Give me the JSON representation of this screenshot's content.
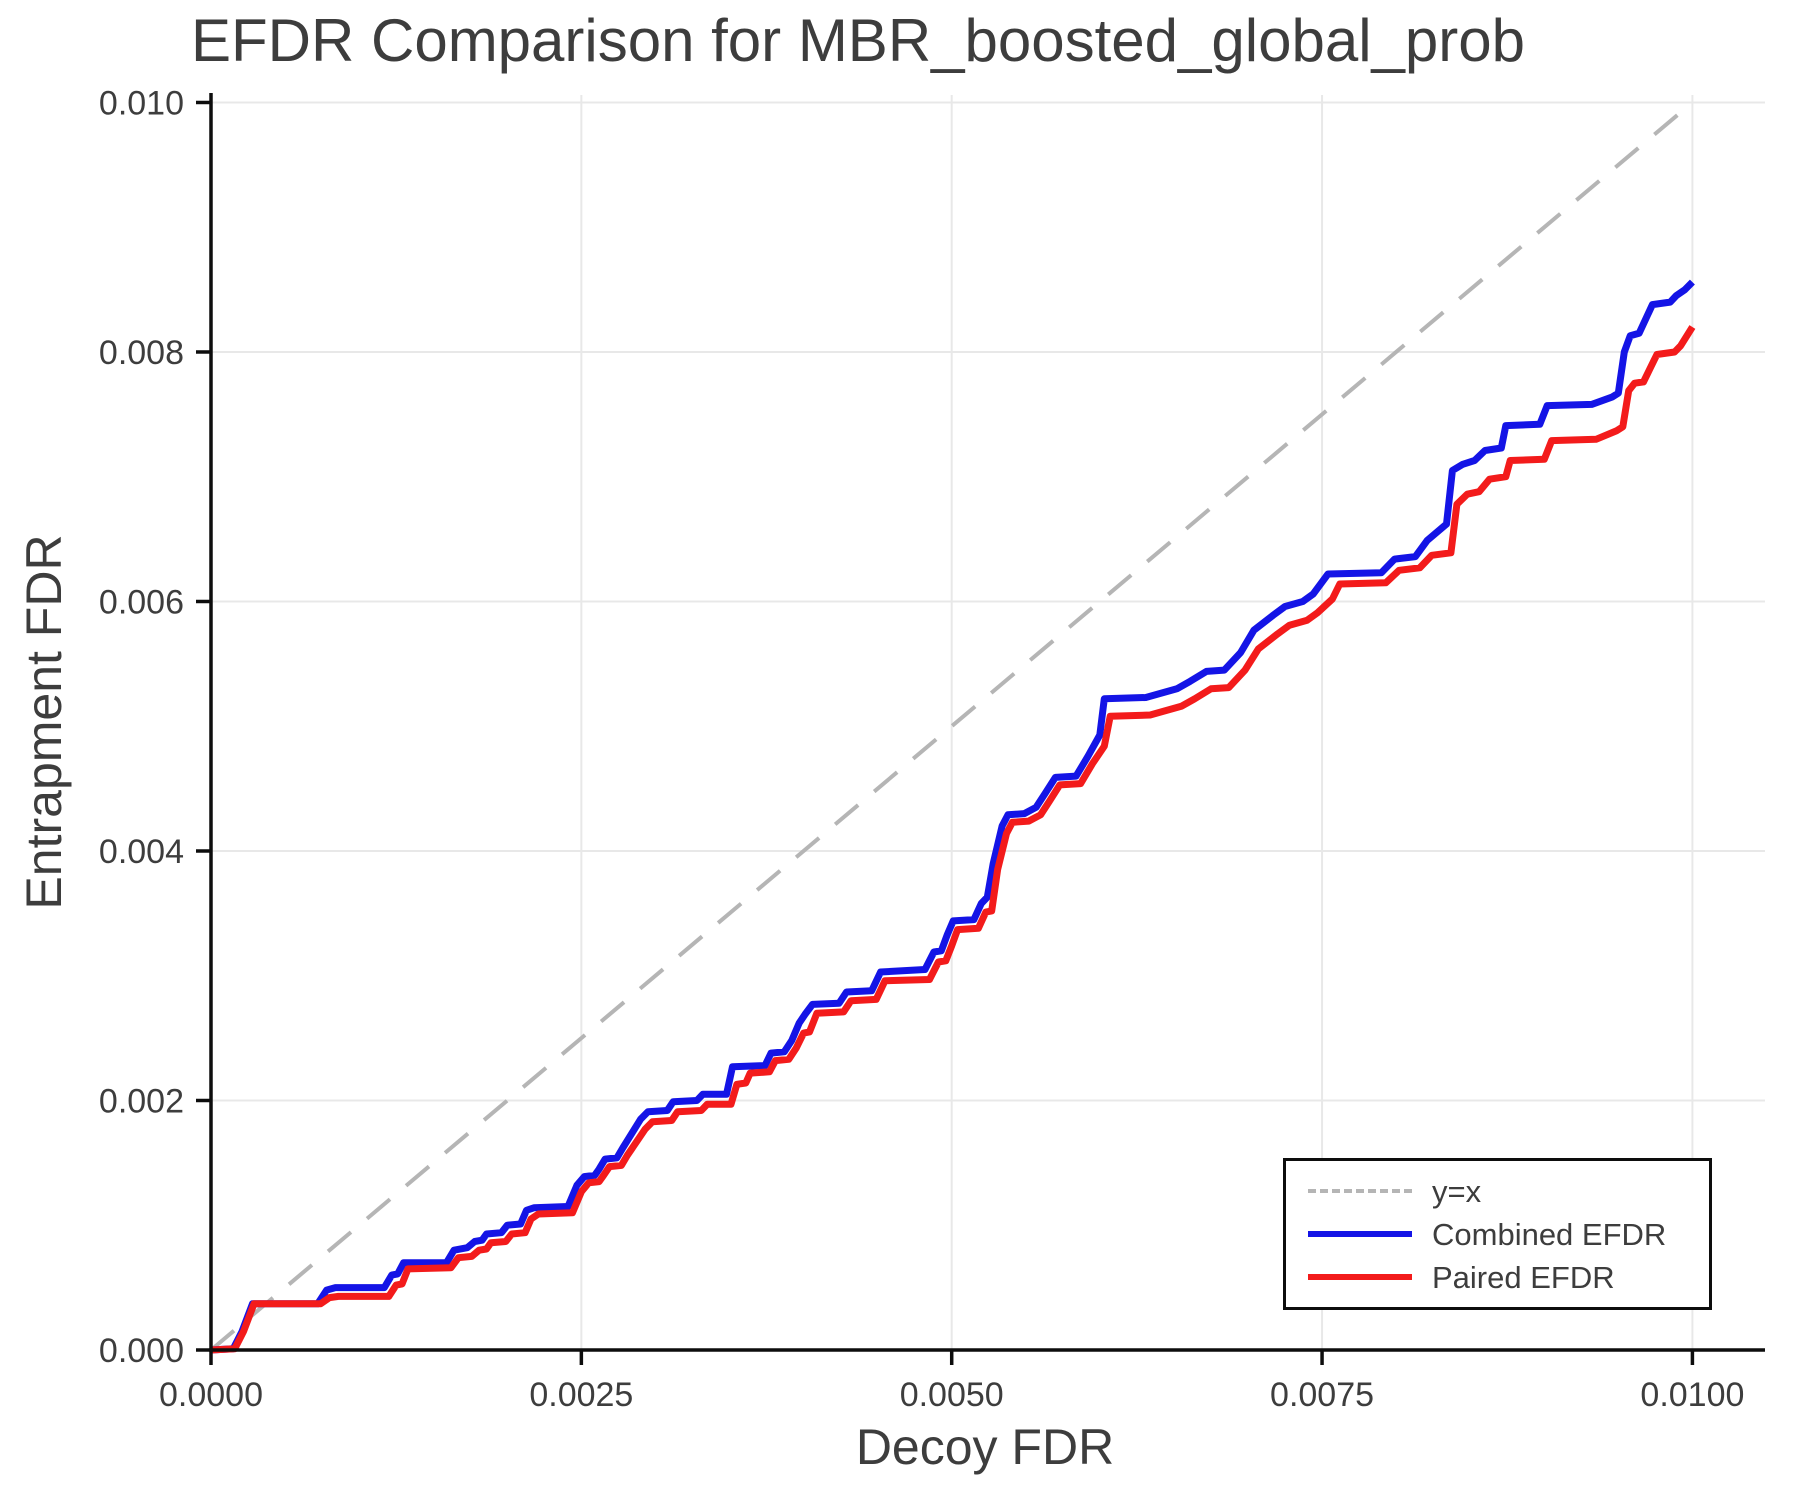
{
  "chart_data": {
    "type": "line",
    "title": "EFDR Comparison for MBR_boosted_global_prob",
    "xlabel": "Decoy FDR",
    "ylabel": "Entrapment FDR",
    "xlim": [
      0,
      0.01049
    ],
    "ylim": [
      0,
      0.01006
    ],
    "grid": true,
    "x_ticks": {
      "values": [
        0,
        0.0025,
        0.005,
        0.0075,
        0.01
      ],
      "labels": [
        "0.0000",
        "0.0025",
        "0.0050",
        "0.0075",
        "0.0100"
      ]
    },
    "y_ticks": {
      "values": [
        0,
        0.002,
        0.004,
        0.006,
        0.008,
        0.01
      ],
      "labels": [
        "0.000",
        "0.002",
        "0.004",
        "0.006",
        "0.008",
        "0.010"
      ]
    },
    "legend": {
      "position": "lower right",
      "entries": [
        "y=x",
        "Combined EFDR",
        "Paired EFDR"
      ]
    },
    "colors": {
      "identity_line": "#b5b5b5",
      "combined": "#1414e6",
      "paired": "#f31b1b",
      "grid": "#e8e8e8",
      "spine": "#0d0d0d",
      "text": "#3d3d3d"
    },
    "series": [
      {
        "name": "y=x",
        "style": "dashed",
        "color": "#b5b5b5",
        "width": 4,
        "points": [
          [
            0,
            0
          ],
          [
            0.01,
            0.01
          ]
        ]
      },
      {
        "name": "Combined EFDR",
        "style": "solid",
        "color": "#1414e6",
        "width": 7,
        "points": [
          [
            0,
            0
          ],
          [
            0.00015,
            1e-05
          ],
          [
            0.00021,
            0.00015
          ],
          [
            0.00028,
            0.00037
          ],
          [
            0.00072,
            0.00037
          ],
          [
            0.00078,
            0.00048
          ],
          [
            0.00084,
            0.0005
          ],
          [
            0.00117,
            0.0005
          ],
          [
            0.00122,
            0.0006
          ],
          [
            0.00126,
            0.00061
          ],
          [
            0.0013,
            0.0007
          ],
          [
            0.00159,
            0.0007
          ],
          [
            0.00164,
            0.0008
          ],
          [
            0.00173,
            0.00082
          ],
          [
            0.00178,
            0.00087
          ],
          [
            0.00183,
            0.00088
          ],
          [
            0.00186,
            0.00093
          ],
          [
            0.00196,
            0.00094
          ],
          [
            0.002,
            0.001
          ],
          [
            0.00209,
            0.00101
          ],
          [
            0.00213,
            0.00112
          ],
          [
            0.00218,
            0.00114
          ],
          [
            0.00241,
            0.00115
          ],
          [
            0.00247,
            0.00132
          ],
          [
            0.00252,
            0.00139
          ],
          [
            0.00259,
            0.0014
          ],
          [
            0.00262,
            0.00145
          ],
          [
            0.00266,
            0.00153
          ],
          [
            0.00274,
            0.00154
          ],
          [
            0.00278,
            0.00162
          ],
          [
            0.0029,
            0.00185
          ],
          [
            0.00295,
            0.00191
          ],
          [
            0.00308,
            0.00192
          ],
          [
            0.00312,
            0.00199
          ],
          [
            0.00328,
            0.002
          ],
          [
            0.00332,
            0.00205
          ],
          [
            0.00348,
            0.00205
          ],
          [
            0.00352,
            0.00227
          ],
          [
            0.00374,
            0.00228
          ],
          [
            0.00378,
            0.00238
          ],
          [
            0.00387,
            0.00239
          ],
          [
            0.00392,
            0.00248
          ],
          [
            0.00397,
            0.00262
          ],
          [
            0.00401,
            0.00269
          ],
          [
            0.00406,
            0.00277
          ],
          [
            0.00424,
            0.00278
          ],
          [
            0.00429,
            0.00287
          ],
          [
            0.00446,
            0.00288
          ],
          [
            0.00452,
            0.00303
          ],
          [
            0.00482,
            0.00305
          ],
          [
            0.00488,
            0.00319
          ],
          [
            0.00493,
            0.0032
          ],
          [
            0.00497,
            0.00333
          ],
          [
            0.00501,
            0.00344
          ],
          [
            0.00515,
            0.00345
          ],
          [
            0.0052,
            0.00358
          ],
          [
            0.00524,
            0.00363
          ],
          [
            0.00528,
            0.0039
          ],
          [
            0.00534,
            0.0042
          ],
          [
            0.00538,
            0.00429
          ],
          [
            0.00549,
            0.0043
          ],
          [
            0.00557,
            0.00435
          ],
          [
            0.00563,
            0.00446
          ],
          [
            0.0057,
            0.00459
          ],
          [
            0.00584,
            0.0046
          ],
          [
            0.00592,
            0.00476
          ],
          [
            0.006,
            0.00493
          ],
          [
            0.00603,
            0.00522
          ],
          [
            0.00631,
            0.00523
          ],
          [
            0.0064,
            0.00526
          ],
          [
            0.00652,
            0.0053
          ],
          [
            0.00661,
            0.00536
          ],
          [
            0.00672,
            0.00544
          ],
          [
            0.00684,
            0.00545
          ],
          [
            0.00695,
            0.00559
          ],
          [
            0.00704,
            0.00577
          ],
          [
            0.00717,
            0.00589
          ],
          [
            0.00725,
            0.00596
          ],
          [
            0.00737,
            0.006
          ],
          [
            0.00744,
            0.00606
          ],
          [
            0.00754,
            0.00622
          ],
          [
            0.0079,
            0.00623
          ],
          [
            0.00799,
            0.00634
          ],
          [
            0.00813,
            0.00636
          ],
          [
            0.00821,
            0.00649
          ],
          [
            0.00834,
            0.00662
          ],
          [
            0.00838,
            0.00705
          ],
          [
            0.00845,
            0.0071
          ],
          [
            0.00853,
            0.00713
          ],
          [
            0.0086,
            0.00721
          ],
          [
            0.00871,
            0.00723
          ],
          [
            0.00874,
            0.00741
          ],
          [
            0.00897,
            0.00742
          ],
          [
            0.00902,
            0.00757
          ],
          [
            0.00932,
            0.00758
          ],
          [
            0.00946,
            0.00764
          ],
          [
            0.0095,
            0.00767
          ],
          [
            0.00954,
            0.008
          ],
          [
            0.00958,
            0.00813
          ],
          [
            0.00964,
            0.00815
          ],
          [
            0.00973,
            0.00838
          ],
          [
            0.00985,
            0.0084
          ],
          [
            0.00989,
            0.00845
          ],
          [
            0.00995,
            0.0085
          ],
          [
            0.01,
            0.00856
          ]
        ]
      },
      {
        "name": "Paired EFDR",
        "style": "solid",
        "color": "#f31b1b",
        "width": 7,
        "points": [
          [
            0,
            0
          ],
          [
            0.00016,
            1e-05
          ],
          [
            0.00022,
            0.00015
          ],
          [
            0.00029,
            0.00037
          ],
          [
            0.00074,
            0.00037
          ],
          [
            0.0008,
            0.00042
          ],
          [
            0.00086,
            0.00043
          ],
          [
            0.0012,
            0.00043
          ],
          [
            0.00125,
            0.00052
          ],
          [
            0.00129,
            0.00053
          ],
          [
            0.00133,
            0.00065
          ],
          [
            0.00162,
            0.00066
          ],
          [
            0.00167,
            0.00074
          ],
          [
            0.00176,
            0.00075
          ],
          [
            0.00181,
            0.0008
          ],
          [
            0.00186,
            0.00081
          ],
          [
            0.00189,
            0.00086
          ],
          [
            0.00199,
            0.00087
          ],
          [
            0.00203,
            0.00093
          ],
          [
            0.00212,
            0.00094
          ],
          [
            0.00216,
            0.00105
          ],
          [
            0.00221,
            0.00109
          ],
          [
            0.00244,
            0.0011
          ],
          [
            0.0025,
            0.00127
          ],
          [
            0.00255,
            0.00134
          ],
          [
            0.00262,
            0.00135
          ],
          [
            0.00265,
            0.0014
          ],
          [
            0.00269,
            0.00147
          ],
          [
            0.00277,
            0.00148
          ],
          [
            0.00281,
            0.00156
          ],
          [
            0.00293,
            0.00177
          ],
          [
            0.00298,
            0.00183
          ],
          [
            0.00311,
            0.00184
          ],
          [
            0.00315,
            0.00191
          ],
          [
            0.00331,
            0.00192
          ],
          [
            0.00335,
            0.00197
          ],
          [
            0.00351,
            0.00197
          ],
          [
            0.00355,
            0.00213
          ],
          [
            0.00361,
            0.00214
          ],
          [
            0.00364,
            0.00222
          ],
          [
            0.00377,
            0.00223
          ],
          [
            0.00381,
            0.00232
          ],
          [
            0.0039,
            0.00233
          ],
          [
            0.00395,
            0.00242
          ],
          [
            0.004,
            0.00254
          ],
          [
            0.00404,
            0.00255
          ],
          [
            0.00409,
            0.0027
          ],
          [
            0.00427,
            0.00271
          ],
          [
            0.00432,
            0.0028
          ],
          [
            0.00449,
            0.00281
          ],
          [
            0.00455,
            0.00296
          ],
          [
            0.00485,
            0.00297
          ],
          [
            0.00491,
            0.00311
          ],
          [
            0.00496,
            0.00312
          ],
          [
            0.005,
            0.00324
          ],
          [
            0.00504,
            0.00337
          ],
          [
            0.00518,
            0.00338
          ],
          [
            0.00523,
            0.00351
          ],
          [
            0.00527,
            0.00352
          ],
          [
            0.00531,
            0.00385
          ],
          [
            0.00537,
            0.00414
          ],
          [
            0.00541,
            0.00423
          ],
          [
            0.00552,
            0.00424
          ],
          [
            0.0056,
            0.00429
          ],
          [
            0.00566,
            0.0044
          ],
          [
            0.00573,
            0.00453
          ],
          [
            0.00587,
            0.00454
          ],
          [
            0.00595,
            0.0047
          ],
          [
            0.00603,
            0.00484
          ],
          [
            0.00607,
            0.00508
          ],
          [
            0.00634,
            0.00509
          ],
          [
            0.00643,
            0.00512
          ],
          [
            0.00655,
            0.00516
          ],
          [
            0.00664,
            0.00522
          ],
          [
            0.00675,
            0.0053
          ],
          [
            0.00687,
            0.00531
          ],
          [
            0.00698,
            0.00545
          ],
          [
            0.00707,
            0.00562
          ],
          [
            0.0072,
            0.00574
          ],
          [
            0.00728,
            0.00581
          ],
          [
            0.0074,
            0.00585
          ],
          [
            0.00747,
            0.00591
          ],
          [
            0.00757,
            0.00602
          ],
          [
            0.00762,
            0.00614
          ],
          [
            0.00793,
            0.00615
          ],
          [
            0.00802,
            0.00625
          ],
          [
            0.00816,
            0.00627
          ],
          [
            0.00824,
            0.00637
          ],
          [
            0.00837,
            0.00639
          ],
          [
            0.00841,
            0.00678
          ],
          [
            0.00848,
            0.00686
          ],
          [
            0.00856,
            0.00688
          ],
          [
            0.00863,
            0.00698
          ],
          [
            0.00874,
            0.007
          ],
          [
            0.00877,
            0.00713
          ],
          [
            0.009,
            0.00714
          ],
          [
            0.00905,
            0.00729
          ],
          [
            0.00935,
            0.0073
          ],
          [
            0.00949,
            0.00737
          ],
          [
            0.00953,
            0.0074
          ],
          [
            0.00957,
            0.00769
          ],
          [
            0.00961,
            0.00775
          ],
          [
            0.00967,
            0.00776
          ],
          [
            0.00976,
            0.00798
          ],
          [
            0.00988,
            0.008
          ],
          [
            0.00992,
            0.00805
          ],
          [
            0.01,
            0.0082
          ]
        ]
      }
    ]
  }
}
